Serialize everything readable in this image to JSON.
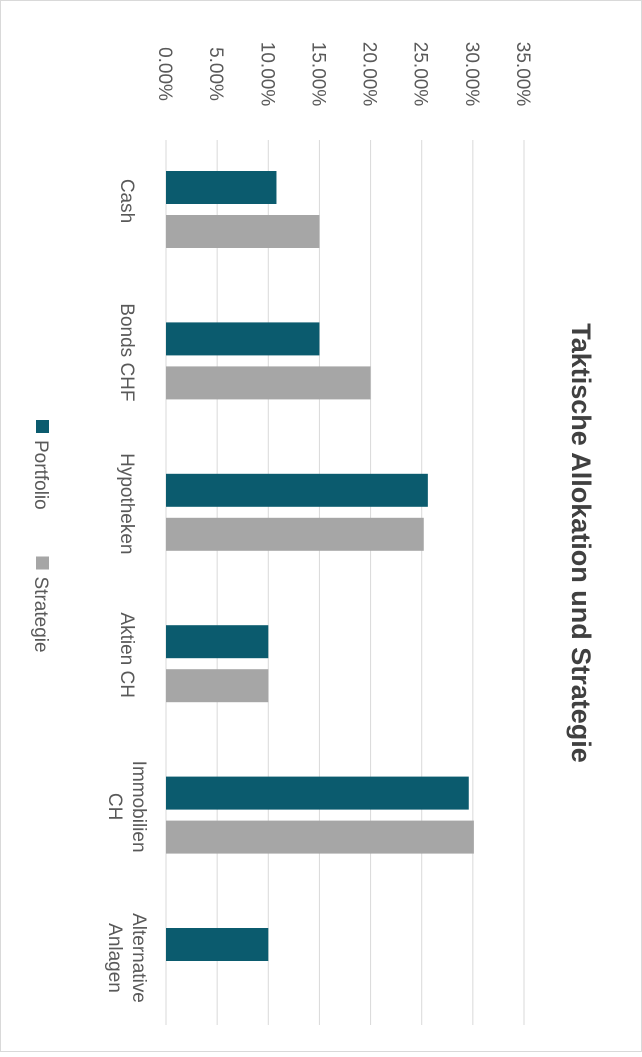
{
  "chart_data": {
    "type": "bar",
    "orientation": "horizontal-rotated",
    "title": "Taktische Allokation und Strategie",
    "xlabel": "",
    "ylabel": "",
    "ylim": [
      0,
      35
    ],
    "ticks": [
      "0.00%",
      "5.00%",
      "10.00%",
      "15.00%",
      "20.00%",
      "25.00%",
      "30.00%",
      "35.00%"
    ],
    "tick_values": [
      0,
      5,
      10,
      15,
      20,
      25,
      30,
      35
    ],
    "grid": true,
    "legend_position": "bottom",
    "categories": [
      [
        "Cash"
      ],
      [
        "Bonds CHF"
      ],
      [
        "Hypotheken"
      ],
      [
        "Aktien CH"
      ],
      [
        "Immobilien",
        "CH"
      ],
      [
        "Alternative",
        "Anlagen"
      ]
    ],
    "series": [
      {
        "name": "Portfolio",
        "color": "#0b5b6e",
        "values": [
          10.8,
          15.0,
          25.6,
          10.0,
          29.6,
          10.0
        ]
      },
      {
        "name": "Strategie",
        "color": "#a6a6a6",
        "values": [
          15.0,
          20.0,
          25.2,
          10.0,
          30.1,
          0
        ]
      }
    ]
  }
}
